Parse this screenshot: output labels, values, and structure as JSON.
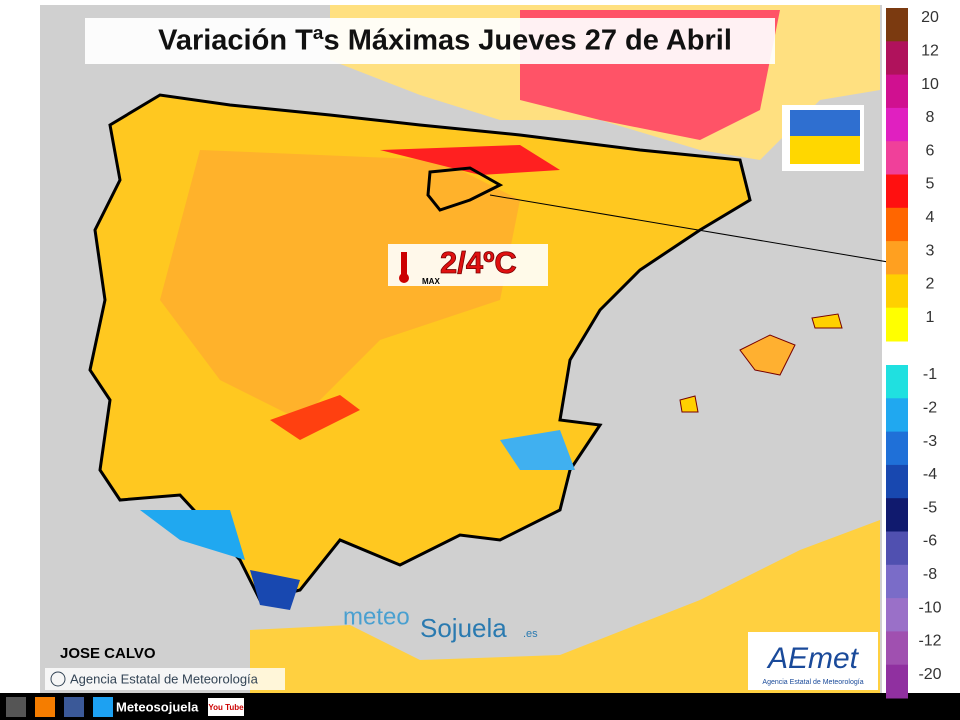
{
  "header": {
    "title": "Variación Tªs Máximas Jueves 27 de Abril"
  },
  "annotation": {
    "value": "2/4ºC",
    "icon_label": "MAX"
  },
  "legend": {
    "entries": [
      {
        "label": "20",
        "color": "#7b3a10"
      },
      {
        "label": "12",
        "color": "#b0125c"
      },
      {
        "label": "10",
        "color": "#d01090"
      },
      {
        "label": "8",
        "color": "#e020c0"
      },
      {
        "label": "6",
        "color": "#f0409a"
      },
      {
        "label": "5",
        "color": "#ff1010"
      },
      {
        "label": "4",
        "color": "#ff6600"
      },
      {
        "label": "3",
        "color": "#ffa020"
      },
      {
        "label": "2",
        "color": "#ffd000"
      },
      {
        "label": "1",
        "color": "#ffff00"
      },
      {
        "label": "-1",
        "color": "#20e0e0"
      },
      {
        "label": "-2",
        "color": "#20a8f0"
      },
      {
        "label": "-3",
        "color": "#1f70d8"
      },
      {
        "label": "-4",
        "color": "#1848b0"
      },
      {
        "label": "-5",
        "color": "#101a6e"
      },
      {
        "label": "-6",
        "color": "#5050b0"
      },
      {
        "label": "-8",
        "color": "#7a6cc8"
      },
      {
        "label": "-10",
        "color": "#9a70c8"
      },
      {
        "label": "-12",
        "color": "#a050b0"
      },
      {
        "label": "-20",
        "color": "#9030a0"
      }
    ]
  },
  "credits": {
    "author": "JOSE CALVO",
    "source": "Agencia Estatal de Meteorología",
    "watermark": {
      "part1": "meteo",
      "part2": "Sojuela",
      "part3": ".es"
    },
    "logo": {
      "name": "AEmet",
      "subtitle": "Agencia Estatal de Meteorología"
    }
  },
  "footer": {
    "handle": "Meteosojuela",
    "youtube": "You Tube"
  }
}
